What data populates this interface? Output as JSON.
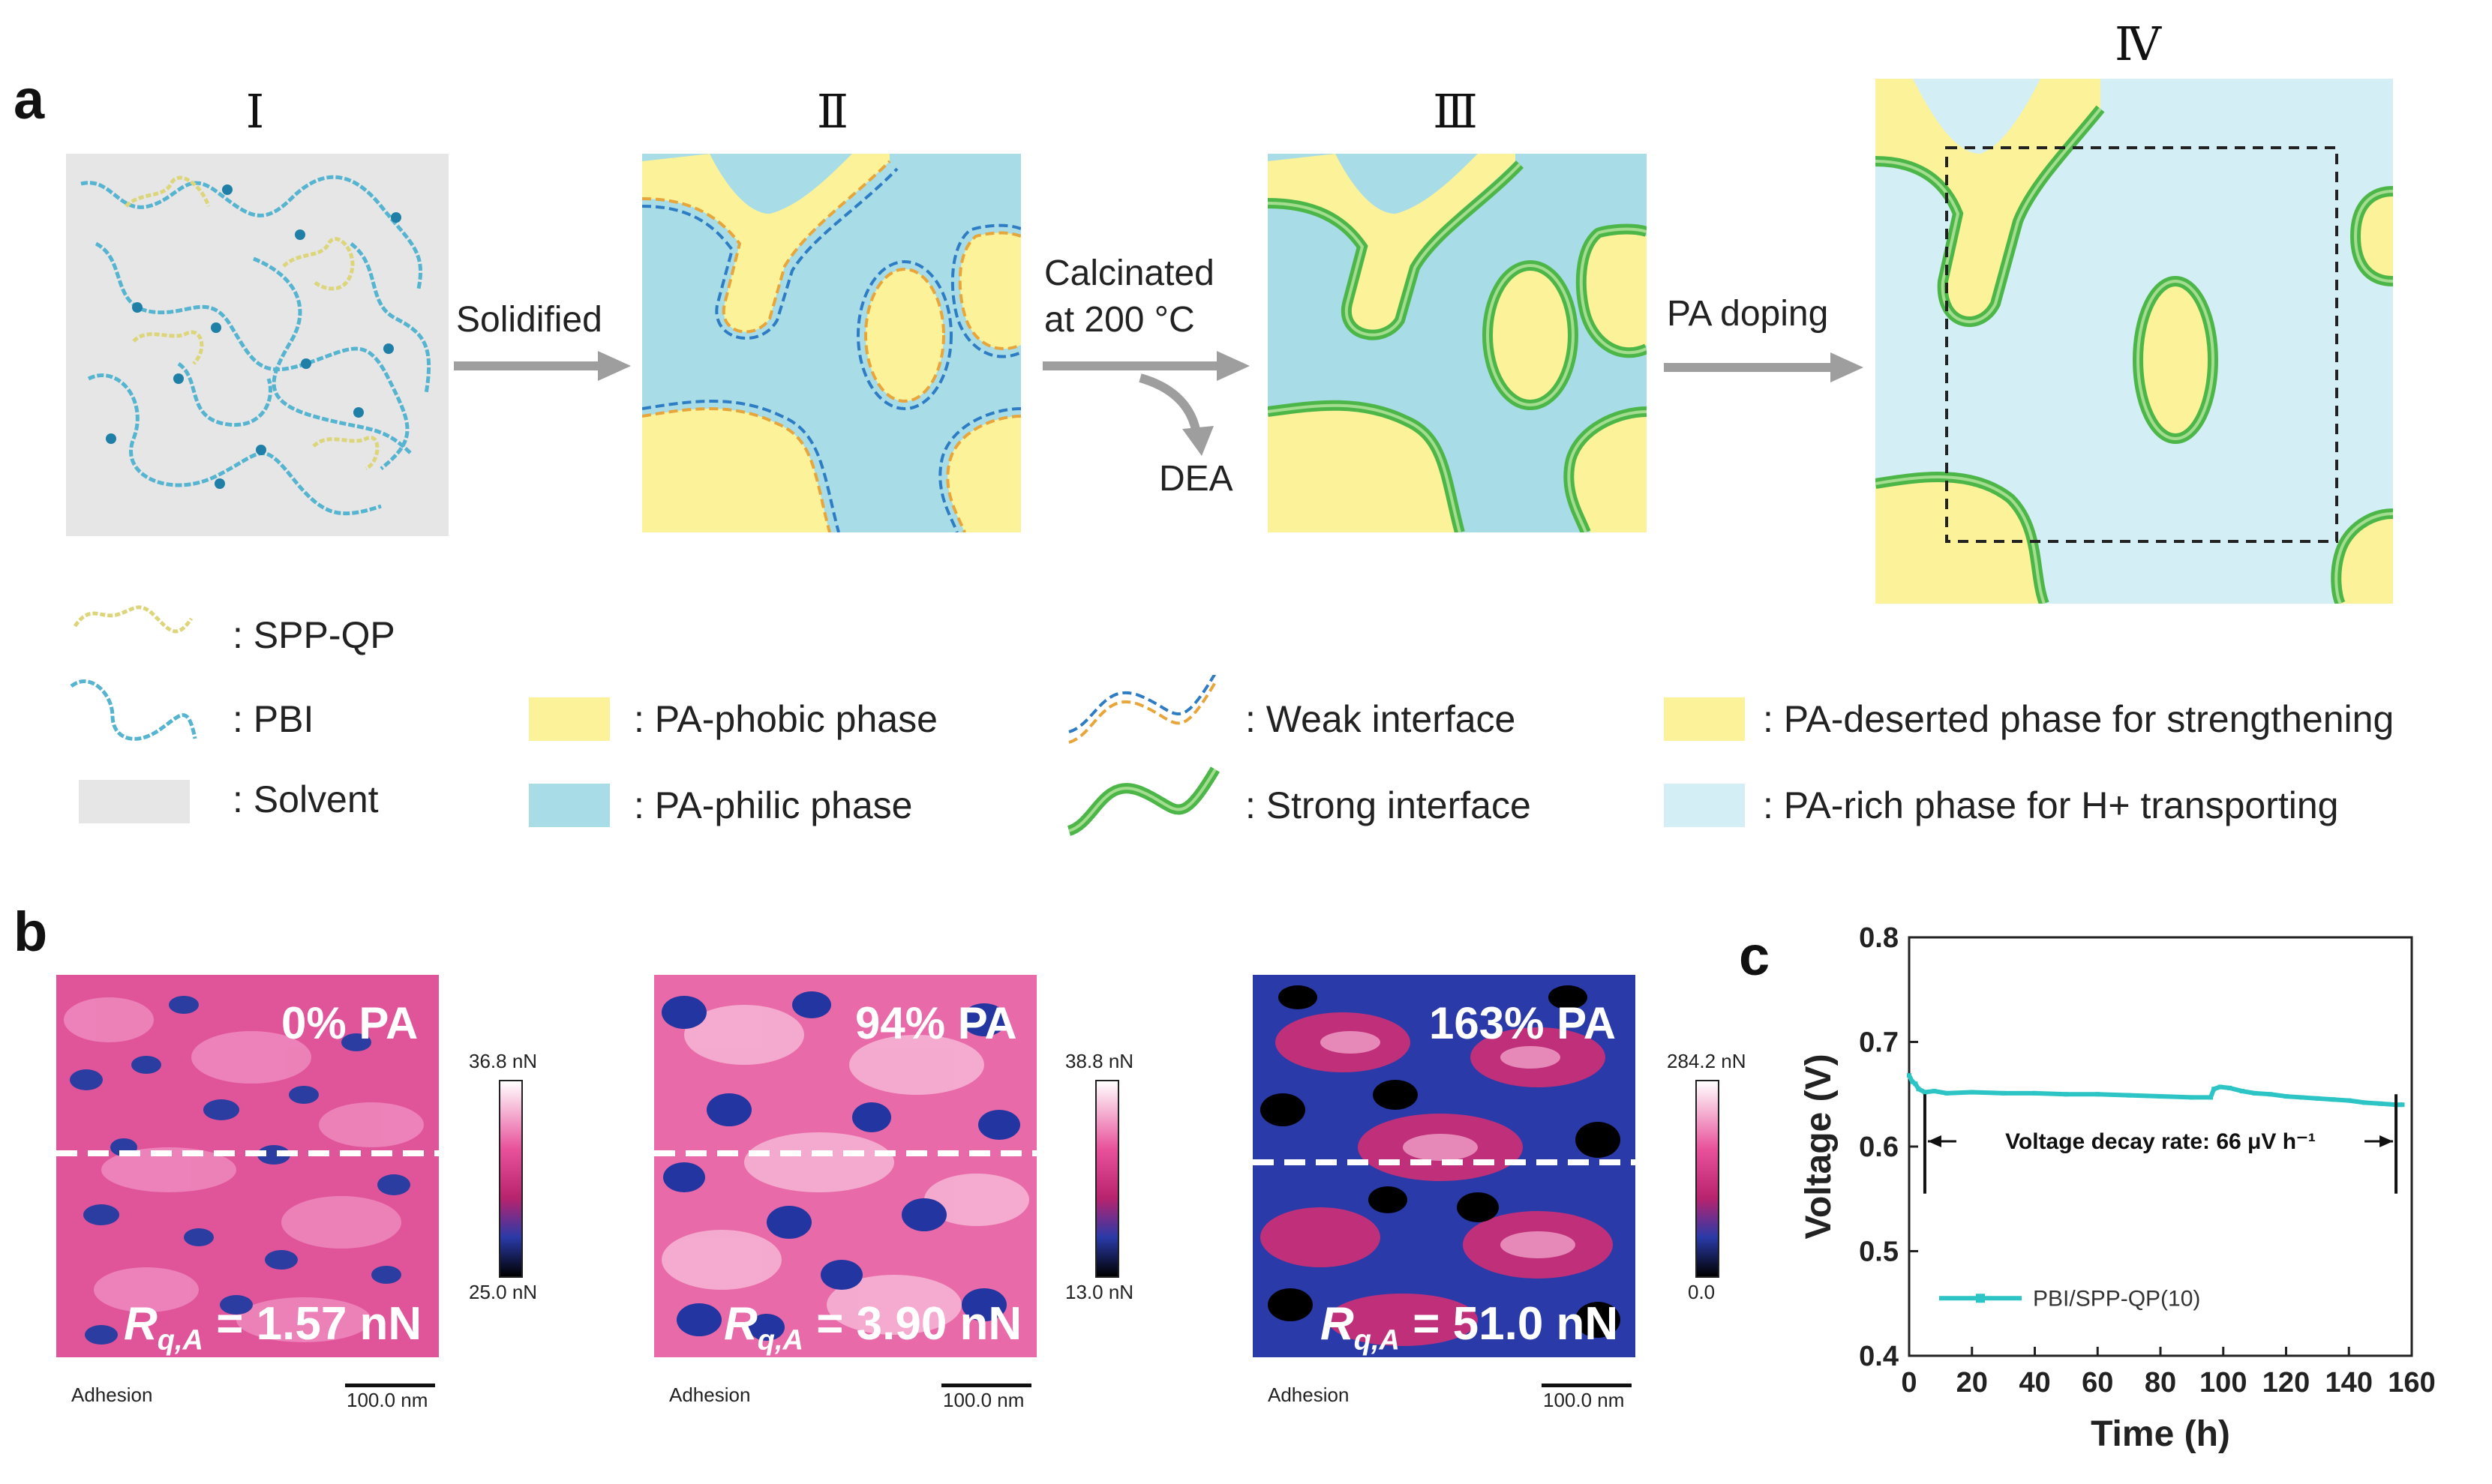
{
  "panel_a": {
    "letter": "a",
    "stages": [
      "Ⅰ",
      "Ⅱ",
      "Ⅲ",
      "Ⅳ"
    ],
    "arrows": {
      "solidified": "Solidified",
      "calcinated_line1": "Calcinated",
      "calcinated_line2": "at 200 °C",
      "dea": "DEA",
      "pa_doping": "PA doping"
    },
    "legend": {
      "spp_qp": ": SPP-QP",
      "pbi": ": PBI",
      "solvent": ": Solvent",
      "pa_phobic": ": PA-phobic phase",
      "pa_philic": ": PA-philic phase",
      "weak_interface": ": Weak interface",
      "strong_interface": ": Strong interface",
      "pa_deserted": ": PA-deserted phase for strengthening",
      "pa_rich": ": PA-rich phase for H+ transporting"
    },
    "colors": {
      "yellow": "#fbf29a",
      "blue": "#a8dce6",
      "light_blue": "#d3eef5",
      "gray": "#e6e6e6",
      "green": "#4cb748",
      "dash_blue": "#2d7cc4",
      "dash_orange": "#e8a53a"
    }
  },
  "panel_b": {
    "letter": "b",
    "images": [
      {
        "pa": "0% PA",
        "rq_sym": "R",
        "rq_sub": "q,A",
        "rq_val": " = 1.57 nN",
        "cb_max": "36.8 nN",
        "cb_min": "25.0 nN",
        "label": "Adhesion",
        "scale": "100.0 nm"
      },
      {
        "pa": "94% PA",
        "rq_sym": "R",
        "rq_sub": "q,A",
        "rq_val": " = 3.90 nN",
        "cb_max": "38.8 nN",
        "cb_min": "13.0 nN",
        "label": "Adhesion",
        "scale": "100.0 nm"
      },
      {
        "pa": "163% PA",
        "rq_sym": "R",
        "rq_sub": "q,A",
        "rq_val": " = 51.0 nN",
        "cb_max": "284.2 nN",
        "cb_min": "0.0",
        "label": "Adhesion",
        "scale": "100.0 nm"
      }
    ]
  },
  "panel_c": {
    "letter": "c",
    "annotation": "Voltage decay rate: 66 μV h⁻¹"
  },
  "chart_data": {
    "type": "line",
    "xlabel": "Time (h)",
    "ylabel": "Voltage (V)",
    "xlim": [
      0,
      160
    ],
    "ylim": [
      0.4,
      0.8
    ],
    "xticks": [
      0,
      20,
      40,
      60,
      80,
      100,
      120,
      140,
      160
    ],
    "yticks": [
      0.4,
      0.5,
      0.6,
      0.7,
      0.8
    ],
    "series": [
      {
        "name": "PBI/SPP-QP(10)",
        "color": "#2cc4c4",
        "x": [
          0,
          1,
          2,
          3,
          5,
          8,
          12,
          20,
          30,
          40,
          50,
          60,
          70,
          80,
          90,
          96,
          97,
          99,
          102,
          106,
          110,
          115,
          120,
          125,
          130,
          135,
          140,
          145,
          150,
          155,
          157
        ],
        "y": [
          0.668,
          0.662,
          0.66,
          0.655,
          0.652,
          0.653,
          0.651,
          0.652,
          0.651,
          0.651,
          0.65,
          0.65,
          0.649,
          0.648,
          0.647,
          0.647,
          0.655,
          0.657,
          0.656,
          0.653,
          0.651,
          0.65,
          0.648,
          0.647,
          0.646,
          0.645,
          0.644,
          0.642,
          0.641,
          0.64,
          0.64
        ]
      }
    ],
    "legend_position": "bottom-left"
  }
}
